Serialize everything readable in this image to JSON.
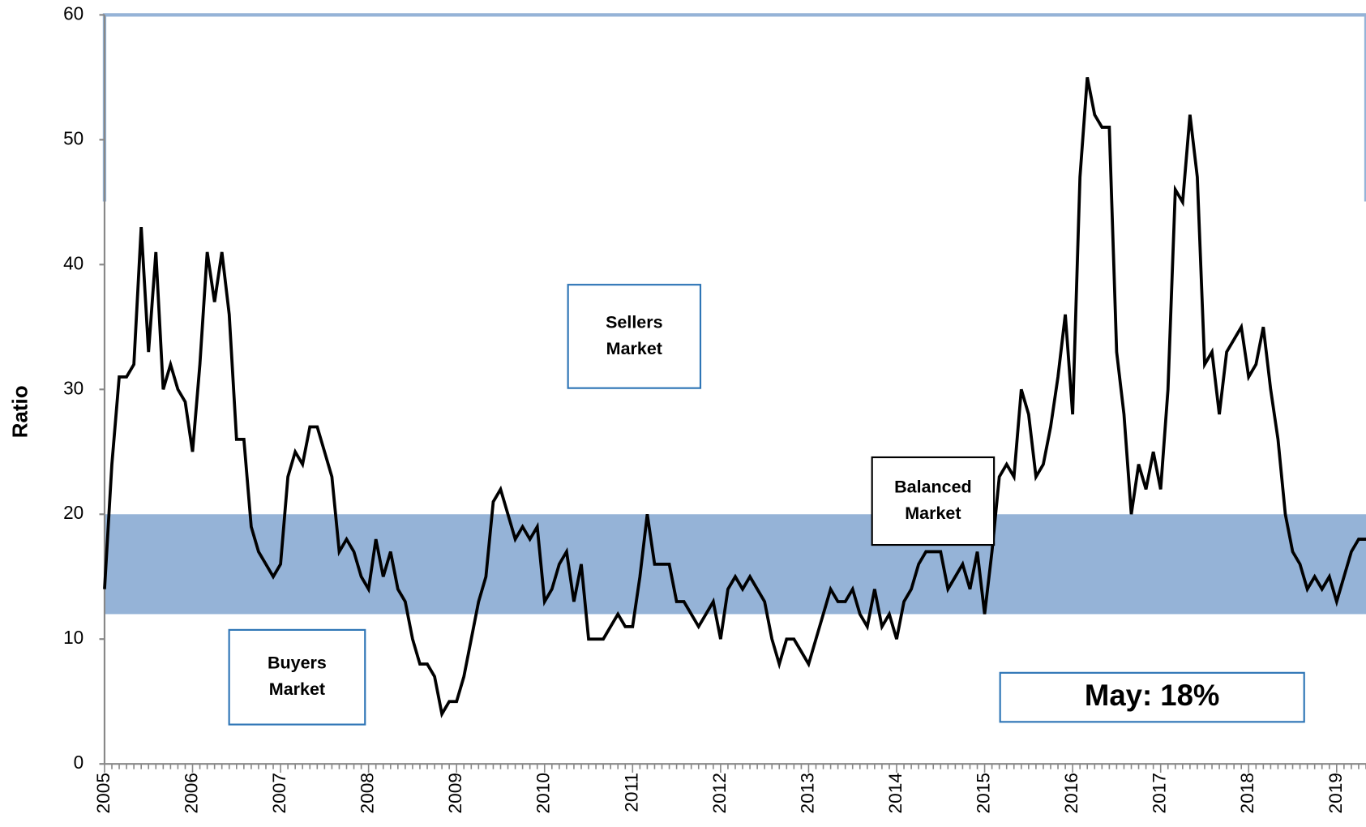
{
  "chart_data": {
    "type": "line",
    "y_label": "Ratio",
    "categories": [
      "2005",
      null,
      null,
      null,
      null,
      null,
      null,
      null,
      null,
      null,
      null,
      null,
      "2006",
      null,
      null,
      null,
      null,
      null,
      null,
      null,
      null,
      null,
      null,
      null,
      "2007",
      null,
      null,
      null,
      null,
      null,
      null,
      null,
      null,
      null,
      null,
      null,
      "2008",
      null,
      null,
      null,
      null,
      null,
      null,
      null,
      null,
      null,
      null,
      null,
      "2009",
      null,
      null,
      null,
      null,
      null,
      null,
      null,
      null,
      null,
      null,
      null,
      "2010",
      null,
      null,
      null,
      null,
      null,
      null,
      null,
      null,
      null,
      null,
      null,
      "2011",
      null,
      null,
      null,
      null,
      null,
      null,
      null,
      null,
      null,
      null,
      null,
      "2012",
      null,
      null,
      null,
      null,
      null,
      null,
      null,
      null,
      null,
      null,
      null,
      "2013",
      null,
      null,
      null,
      null,
      null,
      null,
      null,
      null,
      null,
      null,
      null,
      "2014",
      null,
      null,
      null,
      null,
      null,
      null,
      null,
      null,
      null,
      null,
      null,
      "2015",
      null,
      null,
      null,
      null,
      null,
      null,
      null,
      null,
      null,
      null,
      null,
      "2016",
      null,
      null,
      null,
      null,
      null,
      null,
      null,
      null,
      null,
      null,
      null,
      "2017",
      null,
      null,
      null,
      null,
      null,
      null,
      null,
      null,
      null,
      null,
      null,
      "2018",
      null,
      null,
      null,
      null,
      null,
      null,
      null,
      null,
      null,
      null,
      null,
      "2019",
      null,
      null,
      null,
      null
    ],
    "values": [
      14,
      24,
      31,
      31,
      32,
      43,
      33,
      41,
      30,
      32,
      30,
      29,
      25,
      32,
      41,
      37,
      41,
      36,
      26,
      26,
      19,
      17,
      16,
      15,
      16,
      23,
      25,
      24,
      27,
      27,
      25,
      23,
      17,
      18,
      17,
      15,
      14,
      18,
      15,
      17,
      14,
      13,
      10,
      8,
      8,
      7,
      4,
      5,
      5,
      7,
      10,
      13,
      15,
      21,
      22,
      20,
      18,
      19,
      18,
      19,
      13,
      14,
      16,
      17,
      13,
      16,
      10,
      10,
      10,
      11,
      12,
      11,
      11,
      15,
      20,
      16,
      16,
      16,
      13,
      13,
      12,
      11,
      12,
      13,
      10,
      14,
      15,
      14,
      15,
      14,
      13,
      10,
      8,
      10,
      10,
      9,
      8,
      10,
      12,
      14,
      13,
      13,
      14,
      12,
      11,
      14,
      11,
      12,
      10,
      13,
      14,
      16,
      17,
      17,
      17,
      14,
      15,
      16,
      14,
      17,
      12,
      17,
      23,
      24,
      23,
      30,
      28,
      23,
      24,
      27,
      31,
      36,
      28,
      47,
      55,
      52,
      51,
      51,
      33,
      28,
      20,
      24,
      22,
      25,
      22,
      30,
      46,
      45,
      52,
      47,
      32,
      33,
      28,
      33,
      34,
      35,
      31,
      32,
      35,
      30,
      26,
      20,
      17,
      16,
      14,
      15,
      14,
      15,
      13,
      15,
      17,
      18,
      18
    ],
    "color": "#000000",
    "balanced_band": [
      12,
      20
    ],
    "band_color": "#95b3d7",
    "ylim": [
      0,
      60
    ],
    "yticks": [
      0,
      10,
      20,
      30,
      40,
      50,
      60
    ],
    "annotations": [
      {
        "lines": [
          "Sellers",
          "Market"
        ]
      },
      {
        "lines": [
          "Balanced",
          "Market"
        ]
      },
      {
        "lines": [
          "Buyers",
          "Market"
        ]
      },
      {
        "lines": [
          "May: 18%"
        ]
      }
    ]
  }
}
